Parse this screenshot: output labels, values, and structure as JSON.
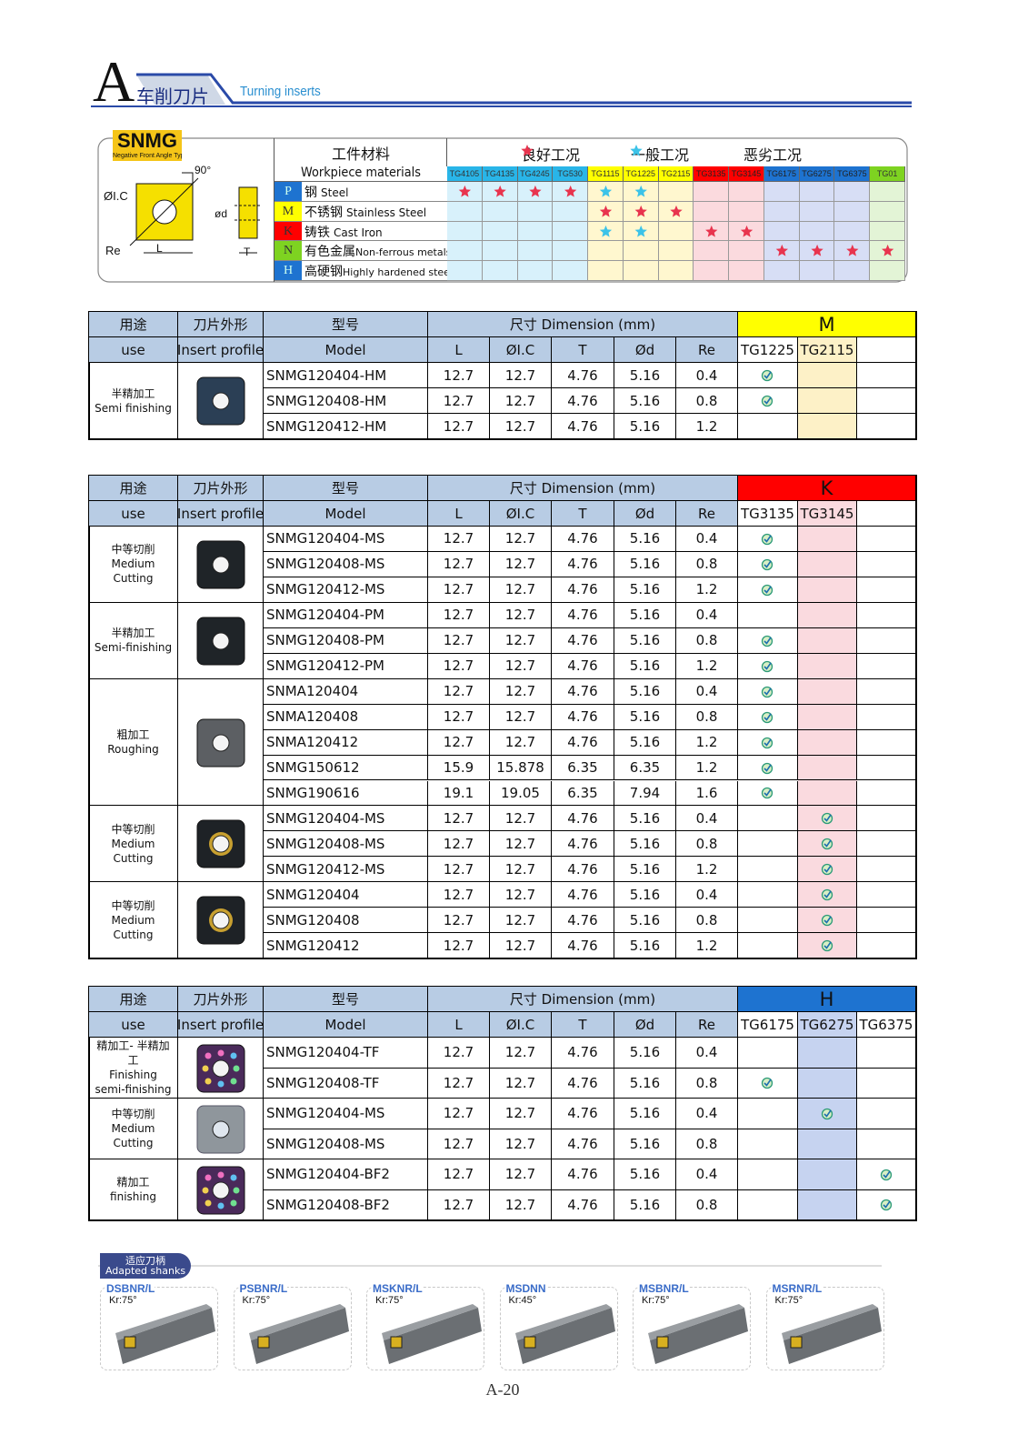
{
  "header": {
    "letter": "A",
    "title_cn": "车削刀片",
    "title_en": "Turning inserts"
  },
  "insert_type": {
    "code": "SNMG",
    "subtitle": "Negative Front Angle Type",
    "angle": "90°",
    "ic": "ØI.C",
    "d": "ød",
    "re": "Re",
    "l": "L",
    "t": "T"
  },
  "materials": {
    "title_cn": "工件材料",
    "title_en": "Workpiece materials",
    "conditions": [
      "良好工况",
      "一般工况",
      "恶劣工况"
    ],
    "grades": [
      {
        "name": "TG4105",
        "color": "#29b5e8",
        "tint": "#d8f1fb"
      },
      {
        "name": "TG4135",
        "color": "#29b5e8",
        "tint": "#d8f1fb"
      },
      {
        "name": "TG4245",
        "color": "#29b5e8",
        "tint": "#d8f1fb"
      },
      {
        "name": "TG530",
        "color": "#29b5e8",
        "tint": "#d8f1fb"
      },
      {
        "name": "TG1115",
        "color": "#ffff00",
        "tint": "#fff7cf"
      },
      {
        "name": "TG1225",
        "color": "#ffff00",
        "tint": "#fff7cf"
      },
      {
        "name": "TG2115",
        "color": "#ffff00",
        "tint": "#fff7cf"
      },
      {
        "name": "TG3135",
        "color": "#ff0000",
        "tint": "#fbdade"
      },
      {
        "name": "TG3145",
        "color": "#ff0000",
        "tint": "#fbdade"
      },
      {
        "name": "TG6175",
        "color": "#1e73d0",
        "tint": "#d7def5"
      },
      {
        "name": "TG6275",
        "color": "#1e73d0",
        "tint": "#d7def5"
      },
      {
        "name": "TG6375",
        "color": "#1e73d0",
        "tint": "#d7def5"
      },
      {
        "name": "TG01",
        "color": "#7ed321",
        "tint": "#e3f4d6"
      }
    ],
    "rows": [
      {
        "code": "P",
        "color": "#1e73d0",
        "cn": "钢",
        "en": "Steel",
        "stars": [
          "#e8344e",
          "#e8344e",
          "#e8344e",
          "#e8344e",
          "#3cc3e8",
          "#3cc3e8",
          null,
          null,
          null,
          null,
          null,
          null,
          null
        ]
      },
      {
        "code": "M",
        "color": "#ffff00",
        "cn": "不锈钢",
        "en": "Stainless Steel",
        "stars": [
          null,
          null,
          null,
          null,
          "#e8344e",
          "#e8344e",
          "#e8344e",
          null,
          null,
          null,
          null,
          null,
          null
        ]
      },
      {
        "code": "K",
        "color": "#ff0000",
        "cn": "铸铁",
        "en": "Cast Iron",
        "stars": [
          null,
          null,
          null,
          null,
          "#3cc3e8",
          "#3cc3e8",
          null,
          "#e8344e",
          "#e8344e",
          null,
          null,
          null,
          null
        ]
      },
      {
        "code": "N",
        "color": "#7ed321",
        "cn": "有色金属",
        "en": "Non-ferrous metals",
        "stars": [
          null,
          null,
          null,
          null,
          null,
          null,
          null,
          null,
          null,
          "#e8344e",
          "#e8344e",
          "#e8344e",
          "#e8344e"
        ]
      },
      {
        "code": "H",
        "color": "#1e73d0",
        "cn": "高硬钢",
        "en": "Highly hardened steel",
        "stars": [
          null,
          null,
          null,
          null,
          null,
          null,
          null,
          null,
          null,
          null,
          null,
          null,
          null
        ]
      }
    ]
  },
  "tables": [
    {
      "use_cn": "用途",
      "profile_cn": "刀片外形",
      "model_cn": "型号",
      "dimension": "尺寸 Dimension (mm)",
      "group": "M",
      "group_color": "#ffff00",
      "use_en": "use",
      "profile_en": "Insert profile",
      "model_en": "Model",
      "dims": [
        "L",
        "ØI.C",
        "T",
        "Ød",
        "Re"
      ],
      "grades": [
        {
          "name": "TG1225"
        },
        {
          "name": "TG2115",
          "fill": "#fdf1c7"
        },
        {
          "name": null
        }
      ],
      "groups": [
        {
          "cn": "半精加工",
          "en": "Semi finishing",
          "rows": [
            {
              "model": "SNMG120404-HM",
              "L": 12.7,
              "IC": 12.7,
              "T": 4.76,
              "d": 5.16,
              "Re": 0.4,
              "checks": [
                true,
                false,
                false
              ]
            },
            {
              "model": "SNMG120408-HM",
              "L": 12.7,
              "IC": 12.7,
              "T": 4.76,
              "d": 5.16,
              "Re": 0.8,
              "checks": [
                true,
                false,
                false
              ]
            },
            {
              "model": "SNMG120412-HM",
              "L": 12.7,
              "IC": 12.7,
              "T": 4.76,
              "d": 5.16,
              "Re": 1.2,
              "checks": [
                false,
                false,
                false
              ]
            }
          ]
        }
      ]
    },
    {
      "use_cn": "用途",
      "profile_cn": "刀片外形",
      "model_cn": "型号",
      "dimension": "尺寸 Dimension (mm)",
      "group": "K",
      "group_color": "#ff0000",
      "use_en": "use",
      "profile_en": "Insert profile",
      "model_en": "Model",
      "dims": [
        "L",
        "ØI.C",
        "T",
        "Ød",
        "Re"
      ],
      "grades": [
        {
          "name": "TG3135"
        },
        {
          "name": "TG3145",
          "fill": "#fadadf"
        },
        {
          "name": null
        }
      ],
      "groups": [
        {
          "cn": "中等切削",
          "en": "Medium Cutting",
          "rows": [
            {
              "model": "SNMG120404-MS",
              "L": 12.7,
              "IC": 12.7,
              "T": 4.76,
              "d": 5.16,
              "Re": 0.4,
              "checks": [
                true,
                false,
                false
              ]
            },
            {
              "model": "SNMG120408-MS",
              "L": 12.7,
              "IC": 12.7,
              "T": 4.76,
              "d": 5.16,
              "Re": 0.8,
              "checks": [
                true,
                false,
                false
              ]
            },
            {
              "model": "SNMG120412-MS",
              "L": 12.7,
              "IC": 12.7,
              "T": 4.76,
              "d": 5.16,
              "Re": 1.2,
              "checks": [
                true,
                false,
                false
              ]
            }
          ]
        },
        {
          "cn": "半精加工",
          "en": "Semi-finishing",
          "rows": [
            {
              "model": "SNMG120404-PM",
              "L": 12.7,
              "IC": 12.7,
              "T": 4.76,
              "d": 5.16,
              "Re": 0.4,
              "checks": [
                false,
                false,
                false
              ]
            },
            {
              "model": "SNMG120408-PM",
              "L": 12.7,
              "IC": 12.7,
              "T": 4.76,
              "d": 5.16,
              "Re": 0.8,
              "checks": [
                true,
                false,
                false
              ]
            },
            {
              "model": "SNMG120412-PM",
              "L": 12.7,
              "IC": 12.7,
              "T": 4.76,
              "d": 5.16,
              "Re": 1.2,
              "checks": [
                true,
                false,
                false
              ]
            }
          ]
        },
        {
          "cn": "粗加工",
          "en": "Roughing",
          "rows": [
            {
              "model": "SNMA120404",
              "L": 12.7,
              "IC": 12.7,
              "T": 4.76,
              "d": 5.16,
              "Re": 0.4,
              "checks": [
                true,
                false,
                false
              ]
            },
            {
              "model": "SNMA120408",
              "L": 12.7,
              "IC": 12.7,
              "T": 4.76,
              "d": 5.16,
              "Re": 0.8,
              "checks": [
                true,
                false,
                false
              ]
            },
            {
              "model": "SNMA120412",
              "L": 12.7,
              "IC": 12.7,
              "T": 4.76,
              "d": 5.16,
              "Re": 1.2,
              "checks": [
                true,
                false,
                false
              ]
            },
            {
              "model": "SNMG150612",
              "L": 15.9,
              "IC": 15.878,
              "T": 6.35,
              "d": 6.35,
              "Re": 1.2,
              "checks": [
                true,
                false,
                false
              ]
            },
            {
              "model": "SNMG190616",
              "L": 19.1,
              "IC": 19.05,
              "T": 6.35,
              "d": 7.94,
              "Re": 1.6,
              "checks": [
                true,
                false,
                false
              ]
            }
          ]
        },
        {
          "cn": "中等切削",
          "en": "Medium Cutting",
          "rows": [
            {
              "model": "SNMG120404-MS",
              "L": 12.7,
              "IC": 12.7,
              "T": 4.76,
              "d": 5.16,
              "Re": 0.4,
              "checks": [
                false,
                true,
                false
              ]
            },
            {
              "model": "SNMG120408-MS",
              "L": 12.7,
              "IC": 12.7,
              "T": 4.76,
              "d": 5.16,
              "Re": 0.8,
              "checks": [
                false,
                true,
                false
              ]
            },
            {
              "model": "SNMG120412-MS",
              "L": 12.7,
              "IC": 12.7,
              "T": 4.76,
              "d": 5.16,
              "Re": 1.2,
              "checks": [
                false,
                true,
                false
              ]
            }
          ]
        },
        {
          "cn": "中等切削",
          "en": "Medium Cutting",
          "rows": [
            {
              "model": "SNMG120404",
              "L": 12.7,
              "IC": 12.7,
              "T": 4.76,
              "d": 5.16,
              "Re": 0.4,
              "checks": [
                false,
                true,
                false
              ]
            },
            {
              "model": "SNMG120408",
              "L": 12.7,
              "IC": 12.7,
              "T": 4.76,
              "d": 5.16,
              "Re": 0.8,
              "checks": [
                false,
                true,
                false
              ]
            },
            {
              "model": "SNMG120412",
              "L": 12.7,
              "IC": 12.7,
              "T": 4.76,
              "d": 5.16,
              "Re": 1.2,
              "checks": [
                false,
                true,
                false
              ]
            }
          ]
        }
      ]
    },
    {
      "use_cn": "用途",
      "profile_cn": "刀片外形",
      "model_cn": "型号",
      "dimension": "尺寸 Dimension (mm)",
      "group": "H",
      "group_color": "#1e73d0",
      "use_en": "use",
      "profile_en": "Insert profile",
      "model_en": "Model",
      "dims": [
        "L",
        "ØI.C",
        "T",
        "Ød",
        "Re"
      ],
      "grades": [
        {
          "name": "TG6175"
        },
        {
          "name": "TG6275",
          "fill": "#c6d3f0"
        },
        {
          "name": "TG6375"
        }
      ],
      "groups": [
        {
          "cn": "精加工- 半精加工",
          "en": "Finishing semi-finishing",
          "rows": [
            {
              "model": "SNMG120404-TF",
              "L": 12.7,
              "IC": 12.7,
              "T": 4.76,
              "d": 5.16,
              "Re": 0.4,
              "checks": [
                false,
                false,
                false
              ]
            },
            {
              "model": "SNMG120408-TF",
              "L": 12.7,
              "IC": 12.7,
              "T": 4.76,
              "d": 5.16,
              "Re": 0.8,
              "checks": [
                true,
                false,
                false
              ]
            }
          ]
        },
        {
          "cn": "中等切削",
          "en": "Medium Cutting",
          "rows": [
            {
              "model": "SNMG120404-MS",
              "L": 12.7,
              "IC": 12.7,
              "T": 4.76,
              "d": 5.16,
              "Re": 0.4,
              "checks": [
                false,
                true,
                false
              ]
            },
            {
              "model": "SNMG120408-MS",
              "L": 12.7,
              "IC": 12.7,
              "T": 4.76,
              "d": 5.16,
              "Re": 0.8,
              "checks": [
                false,
                false,
                false
              ]
            }
          ]
        },
        {
          "cn": "精加工",
          "en": "finishing",
          "rows": [
            {
              "model": "SNMG120404-BF2",
              "L": 12.7,
              "IC": 12.7,
              "T": 4.76,
              "d": 5.16,
              "Re": 0.4,
              "checks": [
                false,
                false,
                true
              ]
            },
            {
              "model": "SNMG120408-BF2",
              "L": 12.7,
              "IC": 12.7,
              "T": 4.76,
              "d": 5.16,
              "Re": 0.8,
              "checks": [
                false,
                false,
                true
              ]
            }
          ]
        }
      ]
    }
  ],
  "shanks": {
    "title_cn": "适应刀柄",
    "title_en": "Adapted shanks",
    "items": [
      {
        "name": "DSBNR/L",
        "kr": "Kr:75°"
      },
      {
        "name": "PSBNR/L",
        "kr": "Kr:75°"
      },
      {
        "name": "MSKNR/L",
        "kr": "Kr:75°"
      },
      {
        "name": "MSDNN",
        "kr": "Kr:45°"
      },
      {
        "name": "MSBNR/L",
        "kr": "Kr:75°"
      },
      {
        "name": "MSRNR/L",
        "kr": "Kr:75°"
      }
    ]
  },
  "footer": {
    "page": "A-20"
  }
}
